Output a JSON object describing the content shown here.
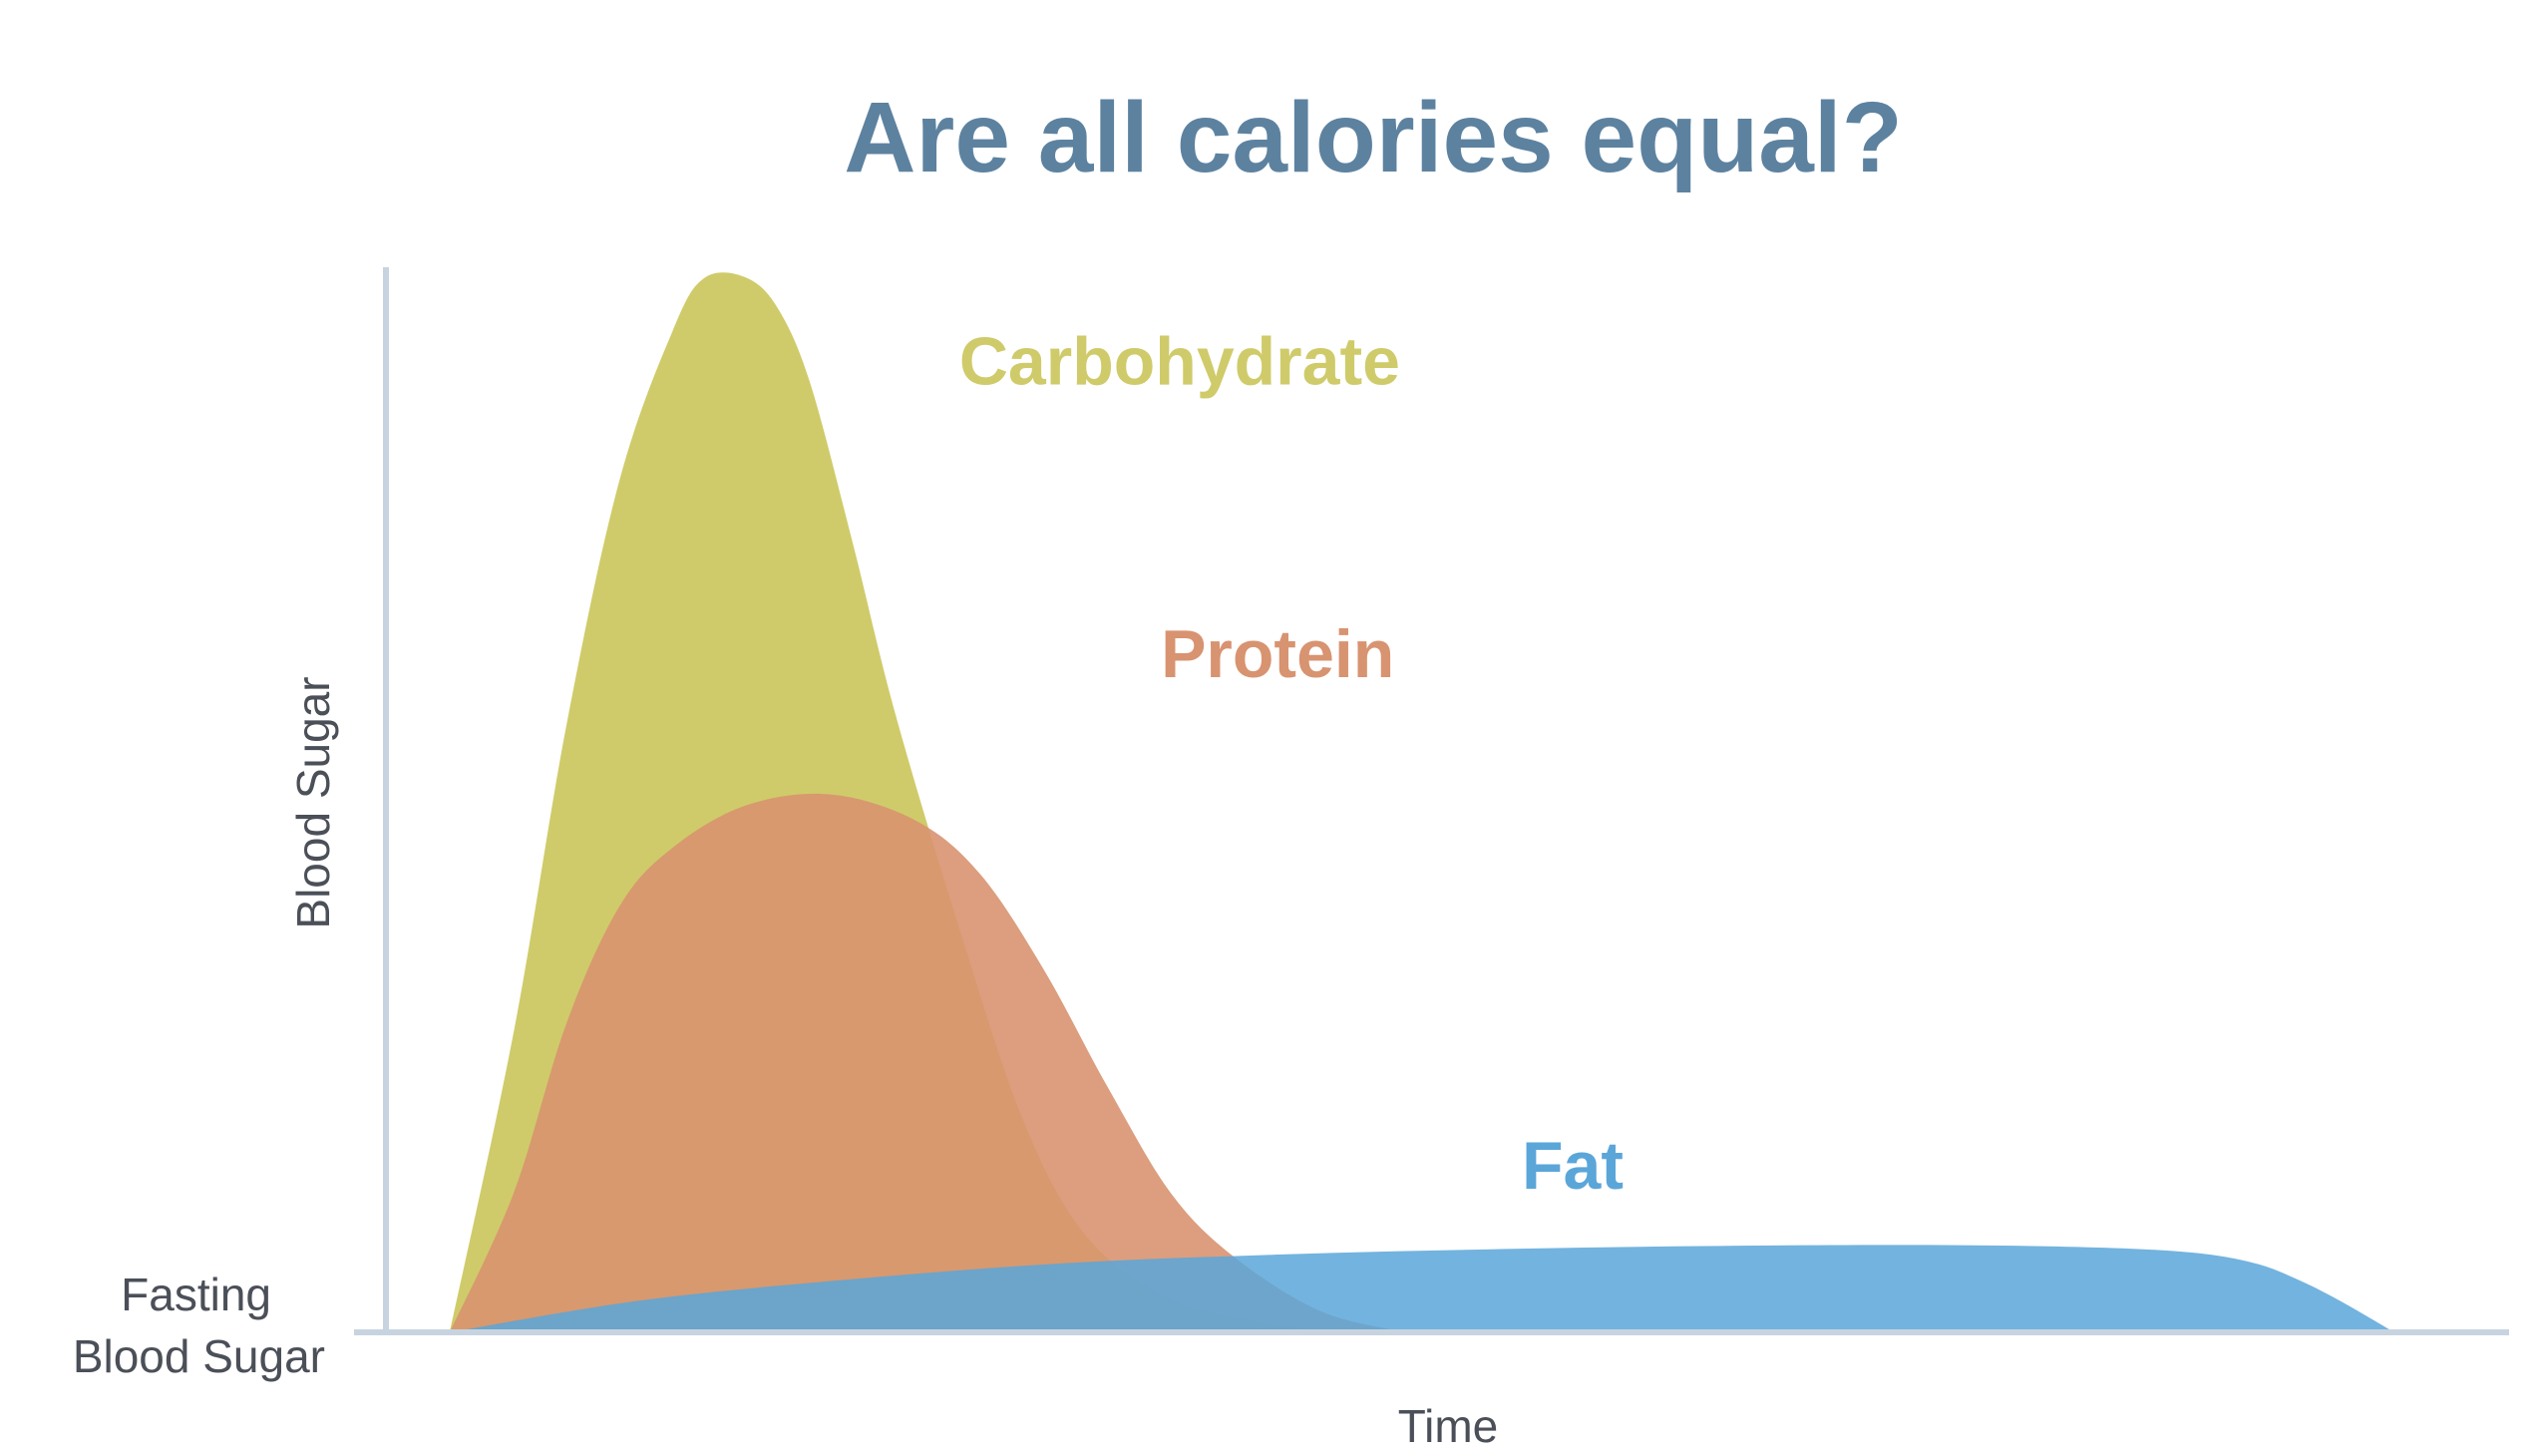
{
  "chart_data": {
    "type": "area",
    "title": "Are all calories equal?",
    "xlabel": "Time",
    "ylabel": "Blood Sugar",
    "baseline_label_line1": "Fasting",
    "baseline_label_line2": "Blood Sugar",
    "xlim": [
      0,
      100
    ],
    "ylim": [
      0,
      100
    ],
    "grid": false,
    "legend": "inline labels",
    "series": [
      {
        "name": "Carbohydrate",
        "color": "#cfcb6a",
        "x": [
          3,
          6,
          8.5,
          11,
          13.5,
          15,
          17,
          18.5,
          20,
          22,
          24,
          27,
          30,
          33,
          37,
          41,
          45,
          50,
          55,
          60
        ],
        "values": [
          0,
          28,
          57,
          80,
          94,
          99,
          99,
          96,
          89,
          74,
          58,
          38,
          20,
          9,
          3,
          1,
          0,
          0,
          0,
          0
        ]
      },
      {
        "name": "Protein",
        "color": "#d89370",
        "x": [
          3,
          6,
          8.5,
          11,
          13.5,
          17,
          21,
          25,
          28,
          31,
          34,
          37,
          40,
          44,
          48
        ],
        "values": [
          0,
          13,
          29,
          40,
          45.5,
          49.5,
          50.5,
          48,
          43,
          34,
          23,
          13,
          7,
          2,
          0
        ]
      },
      {
        "name": "Fat",
        "color": "#5ba6d9",
        "x": [
          3,
          12,
          22,
          32,
          42,
          52,
          62,
          72,
          80,
          85,
          88,
          90,
          92,
          94.6
        ],
        "values": [
          0,
          3,
          5,
          6.5,
          7.3,
          7.8,
          8.1,
          8.2,
          8,
          7.5,
          6.5,
          5,
          3,
          0
        ]
      }
    ]
  }
}
